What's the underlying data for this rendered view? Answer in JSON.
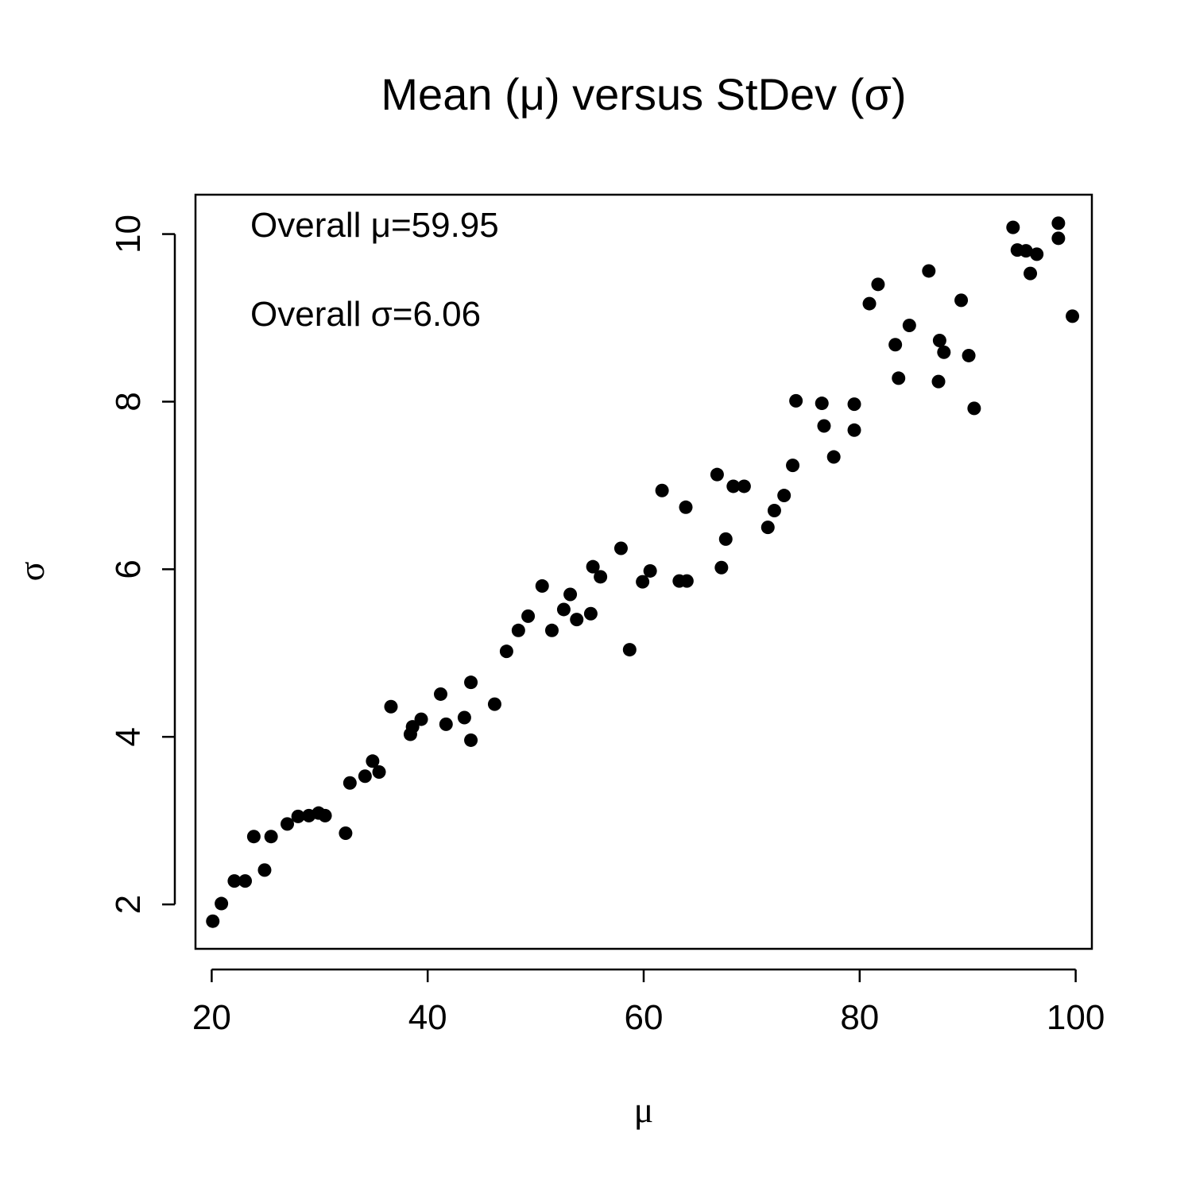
{
  "chart_data": {
    "type": "scatter",
    "title": "Mean (μ) versus StDev (σ)",
    "xlabel": "μ",
    "ylabel": "σ",
    "xlim": [
      18.5,
      101.5
    ],
    "ylim": [
      1.47,
      10.47
    ],
    "xticks": [
      20,
      40,
      60,
      80,
      100
    ],
    "xtick_labels": [
      "20",
      "40",
      "60",
      "80",
      "100"
    ],
    "yticks": [
      2,
      4,
      6,
      8,
      10
    ],
    "ytick_labels": [
      "2",
      "4",
      "6",
      "8",
      "10"
    ],
    "grid": false,
    "legend": "none",
    "annotations": [
      "Overall μ=59.95",
      "Overall σ=6.06"
    ],
    "point_color": "#000000",
    "points": [
      [
        20.1,
        1.8
      ],
      [
        20.9,
        2.01
      ],
      [
        22.1,
        2.28
      ],
      [
        23.1,
        2.28
      ],
      [
        23.9,
        2.81
      ],
      [
        24.9,
        2.41
      ],
      [
        25.5,
        2.81
      ],
      [
        27.0,
        2.96
      ],
      [
        28.0,
        3.05
      ],
      [
        29.0,
        3.06
      ],
      [
        29.9,
        3.09
      ],
      [
        30.5,
        3.06
      ],
      [
        32.4,
        2.85
      ],
      [
        32.8,
        3.45
      ],
      [
        34.2,
        3.53
      ],
      [
        34.9,
        3.71
      ],
      [
        35.5,
        3.58
      ],
      [
        36.6,
        4.36
      ],
      [
        38.4,
        4.03
      ],
      [
        38.6,
        4.12
      ],
      [
        39.4,
        4.21
      ],
      [
        41.2,
        4.51
      ],
      [
        41.7,
        4.15
      ],
      [
        43.4,
        4.23
      ],
      [
        44.0,
        4.65
      ],
      [
        44.0,
        3.96
      ],
      [
        46.2,
        4.39
      ],
      [
        47.3,
        5.02
      ],
      [
        48.4,
        5.27
      ],
      [
        49.3,
        5.44
      ],
      [
        50.6,
        5.8
      ],
      [
        51.5,
        5.27
      ],
      [
        52.6,
        5.52
      ],
      [
        53.2,
        5.7
      ],
      [
        53.8,
        5.4
      ],
      [
        55.1,
        5.47
      ],
      [
        55.3,
        6.03
      ],
      [
        56.0,
        5.91
      ],
      [
        57.9,
        6.25
      ],
      [
        58.7,
        5.04
      ],
      [
        59.9,
        5.85
      ],
      [
        60.6,
        5.98
      ],
      [
        61.7,
        6.94
      ],
      [
        63.3,
        5.86
      ],
      [
        63.9,
        6.74
      ],
      [
        64.0,
        5.86
      ],
      [
        66.8,
        7.13
      ],
      [
        67.2,
        6.02
      ],
      [
        67.6,
        6.36
      ],
      [
        68.3,
        6.99
      ],
      [
        69.3,
        6.99
      ],
      [
        71.5,
        6.5
      ],
      [
        72.1,
        6.7
      ],
      [
        73.0,
        6.88
      ],
      [
        73.8,
        7.24
      ],
      [
        74.1,
        8.01
      ],
      [
        76.5,
        7.98
      ],
      [
        76.7,
        7.71
      ],
      [
        77.6,
        7.34
      ],
      [
        79.5,
        7.97
      ],
      [
        79.5,
        7.66
      ],
      [
        80.9,
        9.17
      ],
      [
        81.7,
        9.4
      ],
      [
        83.3,
        8.68
      ],
      [
        83.6,
        8.28
      ],
      [
        84.6,
        8.91
      ],
      [
        86.4,
        9.56
      ],
      [
        87.3,
        8.24
      ],
      [
        87.4,
        8.73
      ],
      [
        87.8,
        8.59
      ],
      [
        89.4,
        9.21
      ],
      [
        90.1,
        8.55
      ],
      [
        90.6,
        7.92
      ],
      [
        94.2,
        10.08
      ],
      [
        94.6,
        9.81
      ],
      [
        95.4,
        9.8
      ],
      [
        95.8,
        9.53
      ],
      [
        96.4,
        9.76
      ],
      [
        98.4,
        9.95
      ],
      [
        98.4,
        10.13
      ],
      [
        99.7,
        9.02
      ]
    ]
  }
}
